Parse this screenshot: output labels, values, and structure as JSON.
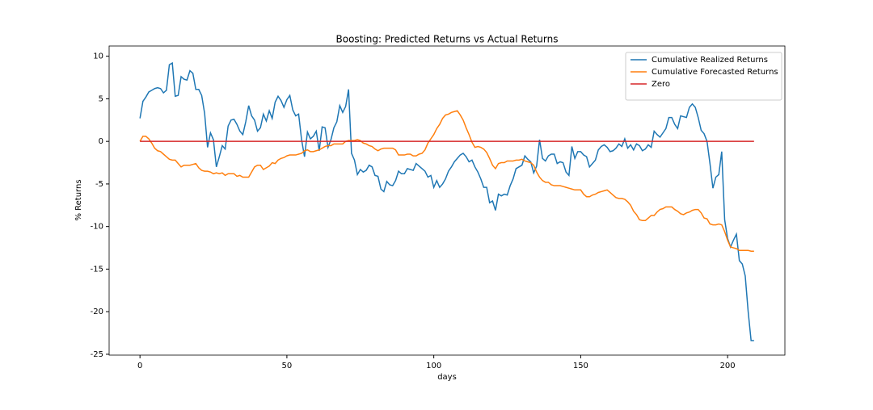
{
  "chart_data": {
    "type": "line",
    "title": "Boosting: Predicted Returns vs Actual Returns",
    "xlabel": "days",
    "ylabel": "% Returns",
    "x": [
      0,
      1,
      2,
      3,
      4,
      5,
      6,
      7,
      8,
      9,
      10,
      11,
      12,
      13,
      14,
      15,
      16,
      17,
      18,
      19,
      20,
      21,
      22,
      23,
      24,
      25,
      26,
      27,
      28,
      29,
      30,
      31,
      32,
      33,
      34,
      35,
      36,
      37,
      38,
      39,
      40,
      41,
      42,
      43,
      44,
      45,
      46,
      47,
      48,
      49,
      50,
      51,
      52,
      53,
      54,
      55,
      56,
      57,
      58,
      59,
      60,
      61,
      62,
      63,
      64,
      65,
      66,
      67,
      68,
      69,
      70,
      71,
      72,
      73,
      74,
      75,
      76,
      77,
      78,
      79,
      80,
      81,
      82,
      83,
      84,
      85,
      86,
      87,
      88,
      89,
      90,
      91,
      92,
      93,
      94,
      95,
      96,
      97,
      98,
      99,
      100,
      101,
      102,
      103,
      104,
      105,
      106,
      107,
      108,
      109,
      110,
      111,
      112,
      113,
      114,
      115,
      116,
      117,
      118,
      119,
      120,
      121,
      122,
      123,
      124,
      125,
      126,
      127,
      128,
      129,
      130,
      131,
      132,
      133,
      134,
      135,
      136,
      137,
      138,
      139,
      140,
      141,
      142,
      143,
      144,
      145,
      146,
      147,
      148,
      149,
      150,
      151,
      152,
      153,
      154,
      155,
      156,
      157,
      158,
      159,
      160,
      161,
      162,
      163,
      164,
      165,
      166,
      167,
      168,
      169,
      170,
      171,
      172,
      173,
      174,
      175,
      176,
      177,
      178,
      179,
      180,
      181,
      182,
      183,
      184,
      185,
      186,
      187,
      188,
      189,
      190,
      191,
      192,
      193,
      194,
      195,
      196,
      197,
      198,
      199,
      200,
      201,
      202,
      203,
      204,
      205,
      206,
      207,
      208,
      209
    ],
    "series": [
      {
        "name": "Cumulative Realized Returns",
        "color": "#1f77b4",
        "values": [
          2.7,
          4.7,
          5.2,
          5.8,
          6.0,
          6.2,
          6.3,
          6.2,
          5.7,
          6.0,
          9.0,
          9.2,
          5.3,
          5.4,
          7.6,
          7.3,
          7.2,
          8.3,
          8.0,
          6.1,
          6.1,
          5.4,
          3.3,
          -0.7,
          1.0,
          0.2,
          -3.0,
          -1.8,
          -0.5,
          -0.9,
          1.8,
          2.5,
          2.6,
          2.0,
          1.2,
          0.8,
          2.3,
          4.2,
          3.0,
          2.5,
          1.2,
          1.6,
          3.2,
          2.4,
          3.6,
          2.7,
          4.6,
          5.3,
          4.8,
          4.0,
          4.9,
          5.4,
          3.7,
          3.0,
          3.2,
          0.2,
          -1.8,
          1.1,
          0.3,
          0.6,
          1.2,
          -1.1,
          1.7,
          1.6,
          -0.7,
          0.2,
          1.6,
          2.3,
          4.2,
          3.4,
          4.1,
          6.1,
          -1.4,
          -2.2,
          -3.9,
          -3.3,
          -3.6,
          -3.4,
          -2.8,
          -3.0,
          -4.0,
          -4.1,
          -5.6,
          -5.9,
          -4.7,
          -5.1,
          -5.2,
          -4.6,
          -3.5,
          -3.8,
          -3.8,
          -3.2,
          -3.3,
          -3.4,
          -2.6,
          -2.9,
          -3.2,
          -3.5,
          -4.2,
          -4.0,
          -5.4,
          -4.6,
          -5.4,
          -5.0,
          -4.4,
          -3.5,
          -3.0,
          -2.4,
          -2.0,
          -1.6,
          -1.4,
          -1.8,
          -2.4,
          -2.2,
          -3.0,
          -3.6,
          -4.4,
          -5.4,
          -5.4,
          -7.2,
          -7.0,
          -8.1,
          -6.2,
          -6.4,
          -6.2,
          -6.3,
          -5.2,
          -4.4,
          -3.2,
          -3.0,
          -2.8,
          -1.7,
          -2.1,
          -2.4,
          -3.7,
          -2.9,
          0.2,
          -2.0,
          -2.3,
          -1.7,
          -1.5,
          -1.5,
          -2.6,
          -2.4,
          -2.5,
          -3.6,
          -4.0,
          -0.6,
          -2.0,
          -1.2,
          -1.2,
          -1.6,
          -1.8,
          -3.0,
          -2.6,
          -2.2,
          -1.0,
          -0.6,
          -0.4,
          -0.7,
          -1.2,
          -1.1,
          -0.8,
          -0.3,
          -0.6,
          0.3,
          -0.8,
          -0.4,
          -1.0,
          -0.3,
          -0.5,
          -1.1,
          -0.9,
          -0.4,
          -0.7,
          1.2,
          0.8,
          0.5,
          1.0,
          1.5,
          2.8,
          2.8,
          2.0,
          1.5,
          3.0,
          2.9,
          2.8,
          4.0,
          4.4,
          4.0,
          2.8,
          1.3,
          0.9,
          0.0,
          -2.6,
          -5.5,
          -4.2,
          -3.9,
          -1.2,
          -9.2,
          -11.4,
          -12.4,
          -11.6,
          -10.9,
          -14.0,
          -14.4,
          -15.8,
          -20.0,
          -23.4,
          -23.4
        ]
      },
      {
        "name": "Cumulative Forecasted Returns",
        "color": "#ff7f0e",
        "values": [
          0.0,
          0.6,
          0.6,
          0.3,
          -0.2,
          -0.8,
          -1.1,
          -1.2,
          -1.5,
          -1.8,
          -2.1,
          -2.2,
          -2.2,
          -2.6,
          -3.0,
          -2.8,
          -2.8,
          -2.8,
          -2.7,
          -2.6,
          -3.1,
          -3.4,
          -3.5,
          -3.5,
          -3.6,
          -3.8,
          -3.7,
          -3.8,
          -3.7,
          -4.0,
          -3.8,
          -3.8,
          -3.8,
          -4.1,
          -4.0,
          -4.2,
          -4.2,
          -4.2,
          -3.6,
          -3.0,
          -2.8,
          -2.8,
          -3.3,
          -3.1,
          -2.9,
          -2.5,
          -2.6,
          -2.2,
          -2.0,
          -1.9,
          -1.7,
          -1.6,
          -1.6,
          -1.6,
          -1.5,
          -1.4,
          -1.1,
          -1.0,
          -1.2,
          -1.2,
          -1.1,
          -1.0,
          -0.8,
          -0.6,
          -0.5,
          -0.5,
          -0.3,
          -0.3,
          -0.3,
          -0.3,
          0.0,
          0.1,
          0.1,
          0.1,
          0.2,
          0.1,
          -0.2,
          -0.3,
          -0.5,
          -0.6,
          -0.9,
          -1.1,
          -0.9,
          -0.8,
          -0.8,
          -0.8,
          -0.8,
          -1.0,
          -1.6,
          -1.6,
          -1.6,
          -1.5,
          -1.5,
          -1.7,
          -1.7,
          -1.5,
          -1.4,
          -1.0,
          -0.2,
          0.3,
          0.8,
          1.5,
          2.0,
          2.7,
          3.1,
          3.2,
          3.4,
          3.5,
          3.6,
          3.1,
          2.5,
          1.6,
          0.8,
          -0.1,
          -0.7,
          -0.6,
          -0.7,
          -0.9,
          -1.3,
          -2.0,
          -2.8,
          -3.2,
          -2.6,
          -2.5,
          -2.5,
          -2.3,
          -2.3,
          -2.3,
          -2.2,
          -2.2,
          -2.1,
          -2.3,
          -2.4,
          -2.5,
          -2.8,
          -3.6,
          -4.2,
          -4.6,
          -4.8,
          -4.8,
          -5.1,
          -5.2,
          -5.2,
          -5.2,
          -5.3,
          -5.4,
          -5.5,
          -5.6,
          -5.7,
          -5.7,
          -5.7,
          -6.2,
          -6.5,
          -6.5,
          -6.3,
          -6.2,
          -6.0,
          -5.9,
          -5.8,
          -5.7,
          -6.0,
          -6.3,
          -6.6,
          -6.7,
          -6.7,
          -6.8,
          -7.1,
          -7.5,
          -8.2,
          -8.6,
          -9.2,
          -9.3,
          -9.3,
          -9.0,
          -8.7,
          -8.7,
          -8.3,
          -8.0,
          -7.9,
          -7.7,
          -7.7,
          -7.7,
          -8.0,
          -8.2,
          -8.5,
          -8.6,
          -8.4,
          -8.3,
          -8.1,
          -8.0,
          -8.0,
          -8.4,
          -9.0,
          -9.1,
          -9.7,
          -9.8,
          -9.8,
          -9.7,
          -9.8,
          -10.6,
          -11.6,
          -12.4,
          -12.5,
          -12.6,
          -12.8,
          -12.8,
          -12.8,
          -12.8,
          -12.9,
          -12.9
        ]
      },
      {
        "name": "Zero",
        "color": "#d62728",
        "values": [
          0,
          0,
          0,
          0,
          0,
          0,
          0,
          0,
          0,
          0,
          0,
          0,
          0,
          0,
          0,
          0,
          0,
          0,
          0,
          0,
          0,
          0,
          0,
          0,
          0,
          0,
          0,
          0,
          0,
          0,
          0,
          0,
          0,
          0,
          0,
          0,
          0,
          0,
          0,
          0,
          0,
          0,
          0,
          0,
          0,
          0,
          0,
          0,
          0,
          0,
          0,
          0,
          0,
          0,
          0,
          0,
          0,
          0,
          0,
          0,
          0,
          0,
          0,
          0,
          0,
          0,
          0,
          0,
          0,
          0,
          0,
          0,
          0,
          0,
          0,
          0,
          0,
          0,
          0,
          0,
          0,
          0,
          0,
          0,
          0,
          0,
          0,
          0,
          0,
          0,
          0,
          0,
          0,
          0,
          0,
          0,
          0,
          0,
          0,
          0,
          0,
          0,
          0,
          0,
          0,
          0,
          0,
          0,
          0,
          0,
          0,
          0,
          0,
          0,
          0,
          0,
          0,
          0,
          0,
          0,
          0,
          0,
          0,
          0,
          0,
          0,
          0,
          0,
          0,
          0,
          0,
          0,
          0,
          0,
          0,
          0,
          0,
          0,
          0,
          0,
          0,
          0,
          0,
          0,
          0,
          0,
          0,
          0,
          0,
          0,
          0,
          0,
          0,
          0,
          0,
          0,
          0,
          0,
          0,
          0,
          0,
          0,
          0,
          0,
          0,
          0,
          0,
          0,
          0,
          0,
          0,
          0,
          0,
          0,
          0,
          0,
          0,
          0,
          0,
          0,
          0,
          0,
          0,
          0,
          0,
          0,
          0,
          0,
          0,
          0,
          0,
          0,
          0,
          0,
          0,
          0,
          0,
          0,
          0,
          0,
          0,
          0,
          0,
          0,
          0,
          0,
          0,
          0,
          0,
          0
        ]
      }
    ],
    "xlim": [
      -10.5,
      219.5
    ],
    "ylim": [
      -25.1,
      11.2
    ],
    "xticks": [
      0,
      50,
      100,
      150,
      200
    ],
    "yticks": [
      -25,
      -20,
      -15,
      -10,
      -5,
      0,
      5,
      10
    ],
    "legend": "upper right"
  }
}
